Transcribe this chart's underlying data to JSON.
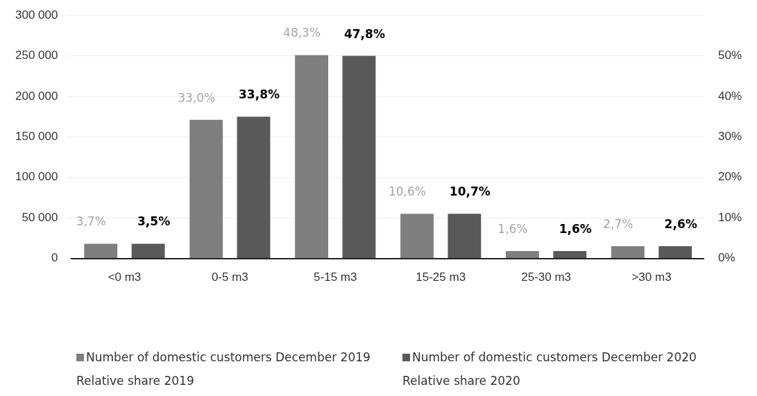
{
  "chart_data": {
    "type": "bar",
    "categories": [
      "<0 m3",
      "0-5 m3",
      "5-15 m3",
      "15-25 m3",
      "25-30 m3",
      ">30 m3"
    ],
    "series": [
      {
        "name": "Number of domestic customers December 2019",
        "color": "#7f7f7f",
        "values": [
          18000,
          171000,
          251000,
          55000,
          9000,
          15000
        ]
      },
      {
        "name": "Number of domestic customers December 2020",
        "color": "#595959",
        "values": [
          18000,
          175000,
          250000,
          55000,
          9000,
          15000
        ]
      }
    ],
    "annotations": [
      "3,7%",
      "3,5%",
      "33,0%",
      "33,8%",
      "48,3%",
      "47,8%",
      "10,6%",
      "10,7%",
      "1,6%",
      "1,6%",
      "2,7%",
      "2,6%",
      "Relative share 2019",
      "Relative share 2020"
    ],
    "ylim": [
      0,
      300000
    ],
    "yticks": [
      {
        "value": 0,
        "label": "0"
      },
      {
        "value": 50000,
        "label": "50 000"
      },
      {
        "value": 100000,
        "label": "100 000"
      },
      {
        "value": 150000,
        "label": "150 000"
      },
      {
        "value": 200000,
        "label": "200 000"
      },
      {
        "value": 250000,
        "label": "250 000"
      },
      {
        "value": 300000,
        "label": "300 000"
      }
    ],
    "y2lim": [
      0,
      60
    ],
    "y2ticks": [
      {
        "value": 0,
        "label": "0%"
      },
      {
        "value": 10,
        "label": "10%"
      },
      {
        "value": 20,
        "label": "20%"
      },
      {
        "value": 30,
        "label": "30%"
      },
      {
        "value": 40,
        "label": "40%"
      },
      {
        "value": 50,
        "label": "50%"
      }
    ],
    "grid": "y",
    "legend": "bottom"
  }
}
